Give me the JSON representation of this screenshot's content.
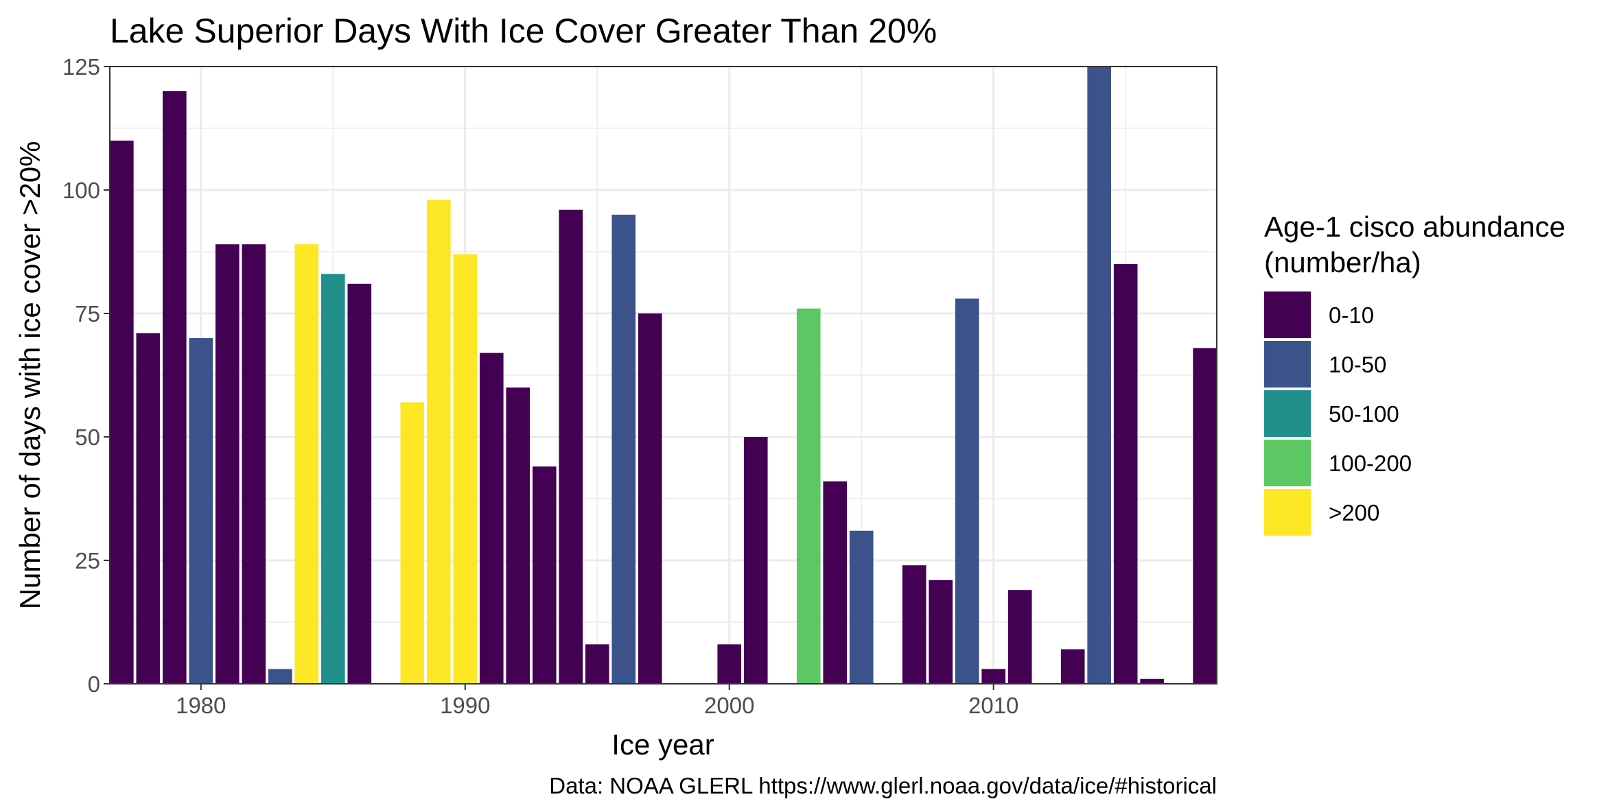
{
  "chart_data": {
    "type": "bar",
    "title": "Lake Superior Days With Ice Cover Greater Than 20%",
    "xlabel": "Ice year",
    "ylabel": "Number of days with ice cover >20%",
    "caption": "Data: NOAA GLERL https://www.glerl.noaa.gov/data/ice/#historical",
    "xlim": [
      1976.55,
      2018.45
    ],
    "ylim": [
      0,
      125
    ],
    "x_ticks": [
      "1980",
      "1990",
      "2000",
      "2010"
    ],
    "x_tick_values": [
      1980,
      1990,
      2000,
      2010
    ],
    "y_ticks": [
      "0",
      "25",
      "50",
      "75",
      "100",
      "125"
    ],
    "y_tick_values": [
      0,
      25,
      50,
      75,
      100,
      125
    ],
    "grid": true,
    "legend": {
      "title": [
        "Age-1 cisco abundance",
        "(number/ha)"
      ],
      "position": "right",
      "items": [
        {
          "label": "0-10",
          "color": "#440154"
        },
        {
          "label": "10-50",
          "color": "#3B528B"
        },
        {
          "label": "50-100",
          "color": "#21908C"
        },
        {
          "label": "100-200",
          "color": "#5DC863"
        },
        {
          "label": ">200",
          "color": "#FDE725"
        }
      ]
    },
    "bars": [
      {
        "year": 1977,
        "value": 110,
        "group": "0-10"
      },
      {
        "year": 1978,
        "value": 71,
        "group": "0-10"
      },
      {
        "year": 1979,
        "value": 120,
        "group": "0-10"
      },
      {
        "year": 1980,
        "value": 70,
        "group": "10-50"
      },
      {
        "year": 1981,
        "value": 89,
        "group": "0-10"
      },
      {
        "year": 1982,
        "value": 89,
        "group": "0-10"
      },
      {
        "year": 1983,
        "value": 3,
        "group": "10-50"
      },
      {
        "year": 1984,
        "value": 89,
        "group": ">200"
      },
      {
        "year": 1985,
        "value": 83,
        "group": "50-100"
      },
      {
        "year": 1986,
        "value": 81,
        "group": "0-10"
      },
      {
        "year": 1988,
        "value": 57,
        "group": ">200"
      },
      {
        "year": 1989,
        "value": 98,
        "group": ">200"
      },
      {
        "year": 1990,
        "value": 87,
        "group": ">200"
      },
      {
        "year": 1991,
        "value": 67,
        "group": "0-10"
      },
      {
        "year": 1992,
        "value": 60,
        "group": "0-10"
      },
      {
        "year": 1993,
        "value": 44,
        "group": "0-10"
      },
      {
        "year": 1994,
        "value": 96,
        "group": "0-10"
      },
      {
        "year": 1995,
        "value": 8,
        "group": "0-10"
      },
      {
        "year": 1996,
        "value": 95,
        "group": "10-50"
      },
      {
        "year": 1997,
        "value": 75,
        "group": "0-10"
      },
      {
        "year": 2000,
        "value": 8,
        "group": "0-10"
      },
      {
        "year": 2001,
        "value": 50,
        "group": "0-10"
      },
      {
        "year": 2003,
        "value": 76,
        "group": "100-200"
      },
      {
        "year": 2004,
        "value": 41,
        "group": "0-10"
      },
      {
        "year": 2005,
        "value": 31,
        "group": "10-50"
      },
      {
        "year": 2007,
        "value": 24,
        "group": "0-10"
      },
      {
        "year": 2008,
        "value": 21,
        "group": "0-10"
      },
      {
        "year": 2009,
        "value": 78,
        "group": "10-50"
      },
      {
        "year": 2010,
        "value": 3,
        "group": "0-10"
      },
      {
        "year": 2011,
        "value": 19,
        "group": "0-10"
      },
      {
        "year": 2013,
        "value": 7,
        "group": "0-10"
      },
      {
        "year": 2014,
        "value": 130,
        "group": "10-50"
      },
      {
        "year": 2015,
        "value": 85,
        "group": "0-10"
      },
      {
        "year": 2016,
        "value": 1,
        "group": "0-10"
      },
      {
        "year": 2018,
        "value": 68,
        "group": "0-10"
      }
    ]
  }
}
